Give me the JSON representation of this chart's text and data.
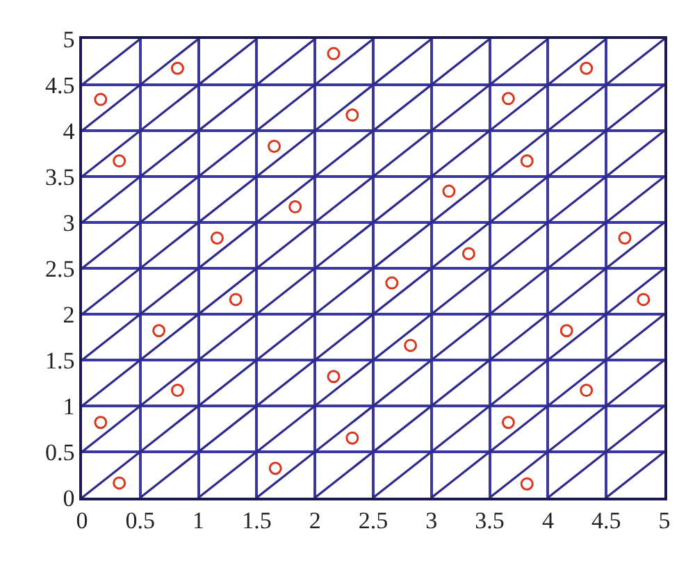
{
  "chart_data": {
    "type": "scatter",
    "xlim": [
      0,
      5
    ],
    "ylim": [
      0,
      5
    ],
    "xticks": [
      0,
      0.5,
      1,
      1.5,
      2,
      2.5,
      3,
      3.5,
      4,
      4.5,
      5
    ],
    "yticks": [
      0,
      0.5,
      1,
      1.5,
      2,
      2.5,
      3,
      3.5,
      4,
      4.5,
      5
    ],
    "grid": true,
    "series": [
      {
        "type": "line",
        "color": "#2e2a8c",
        "marker": "none",
        "line_style": "solid",
        "x": [
          4.5,
          5,
          null,
          4,
          5,
          null,
          3.5,
          5,
          null,
          3,
          5,
          null,
          2.5,
          5,
          null,
          2,
          5,
          null,
          1.5,
          5,
          null,
          1,
          5,
          null,
          0.5,
          5,
          null,
          0,
          5,
          null,
          0,
          4.5,
          null,
          0,
          4,
          null,
          0,
          3.5,
          null,
          0,
          3,
          null,
          0,
          2.5,
          null,
          0,
          2,
          null,
          0,
          1.5,
          null,
          0,
          1,
          null,
          0,
          0.5
        ],
        "values": [
          0,
          0.5,
          null,
          0,
          1,
          null,
          0,
          1.5,
          null,
          0,
          2,
          null,
          0,
          2.5,
          null,
          0,
          3,
          null,
          0,
          3.5,
          null,
          0,
          4,
          null,
          0,
          4.5,
          null,
          0,
          5,
          null,
          0.5,
          5,
          null,
          1,
          5,
          null,
          1.5,
          5,
          null,
          2,
          5,
          null,
          2.5,
          5,
          null,
          3,
          5,
          null,
          3.5,
          5,
          null,
          4,
          5,
          null,
          4.5,
          5
        ]
      },
      {
        "color": "#d9381e",
        "marker": "circle",
        "x": [
          0.16,
          0.82,
          2.16,
          2.32,
          0.32,
          1.65,
          1.83,
          1.16,
          4.33,
          3.66,
          3.82,
          3.15,
          3.32,
          4.66,
          2.66,
          1.32,
          0.66,
          0.82,
          2.16,
          0.16,
          2.32,
          1.66,
          0.32,
          4.82,
          2.82,
          4.16,
          4.33,
          3.66,
          3.82
        ],
        "values": [
          4.34,
          4.68,
          4.84,
          4.17,
          3.67,
          3.83,
          3.17,
          2.83,
          4.68,
          4.35,
          3.67,
          3.34,
          2.66,
          2.83,
          2.34,
          2.16,
          1.82,
          1.17,
          1.32,
          0.82,
          0.65,
          0.32,
          0.16,
          2.16,
          1.66,
          1.82,
          1.17,
          0.82,
          0.15
        ]
      }
    ]
  }
}
